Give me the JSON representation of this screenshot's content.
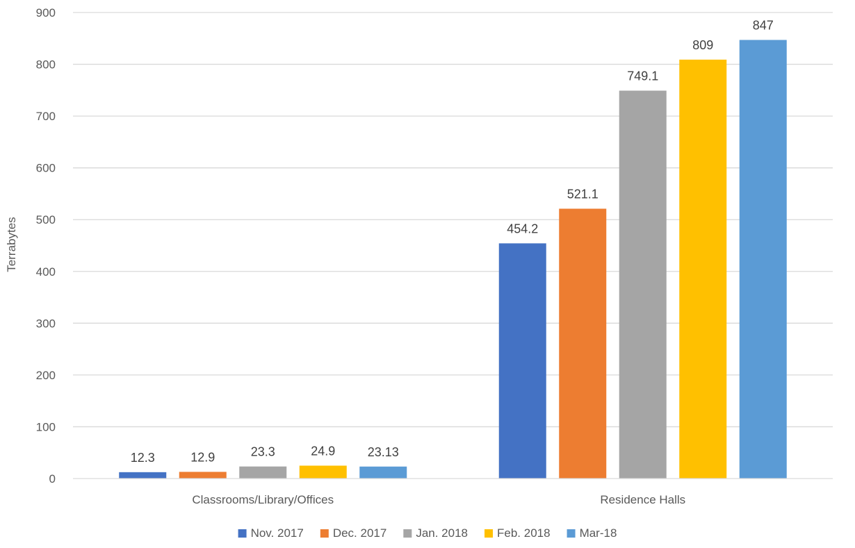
{
  "chart_data": {
    "type": "bar",
    "categories": [
      "Classrooms/Library/Offices",
      "Residence Halls"
    ],
    "series": [
      {
        "name": "Nov. 2017",
        "values": [
          12.3,
          454.2
        ],
        "labels": [
          "12.3",
          "454.2"
        ],
        "color": "#4472C4"
      },
      {
        "name": "Dec. 2017",
        "values": [
          12.9,
          521.1
        ],
        "labels": [
          "12.9",
          "521.1"
        ],
        "color": "#ED7D31"
      },
      {
        "name": "Jan. 2018",
        "values": [
          23.3,
          749.1
        ],
        "labels": [
          "23.3",
          "749.1"
        ],
        "color": "#A5A5A5"
      },
      {
        "name": "Feb. 2018",
        "values": [
          24.9,
          809
        ],
        "labels": [
          "24.9",
          "809"
        ],
        "color": "#FFC000"
      },
      {
        "name": "Mar-18",
        "values": [
          23.13,
          847
        ],
        "labels": [
          "23.13",
          "847"
        ],
        "color": "#5B9BD5"
      }
    ],
    "title": "",
    "xlabel": "",
    "ylabel": "Terrabytes",
    "ylim": [
      0,
      900
    ],
    "yticks": [
      0,
      100,
      200,
      300,
      400,
      500,
      600,
      700,
      800,
      900
    ],
    "grid": true,
    "legend": "bottom"
  }
}
